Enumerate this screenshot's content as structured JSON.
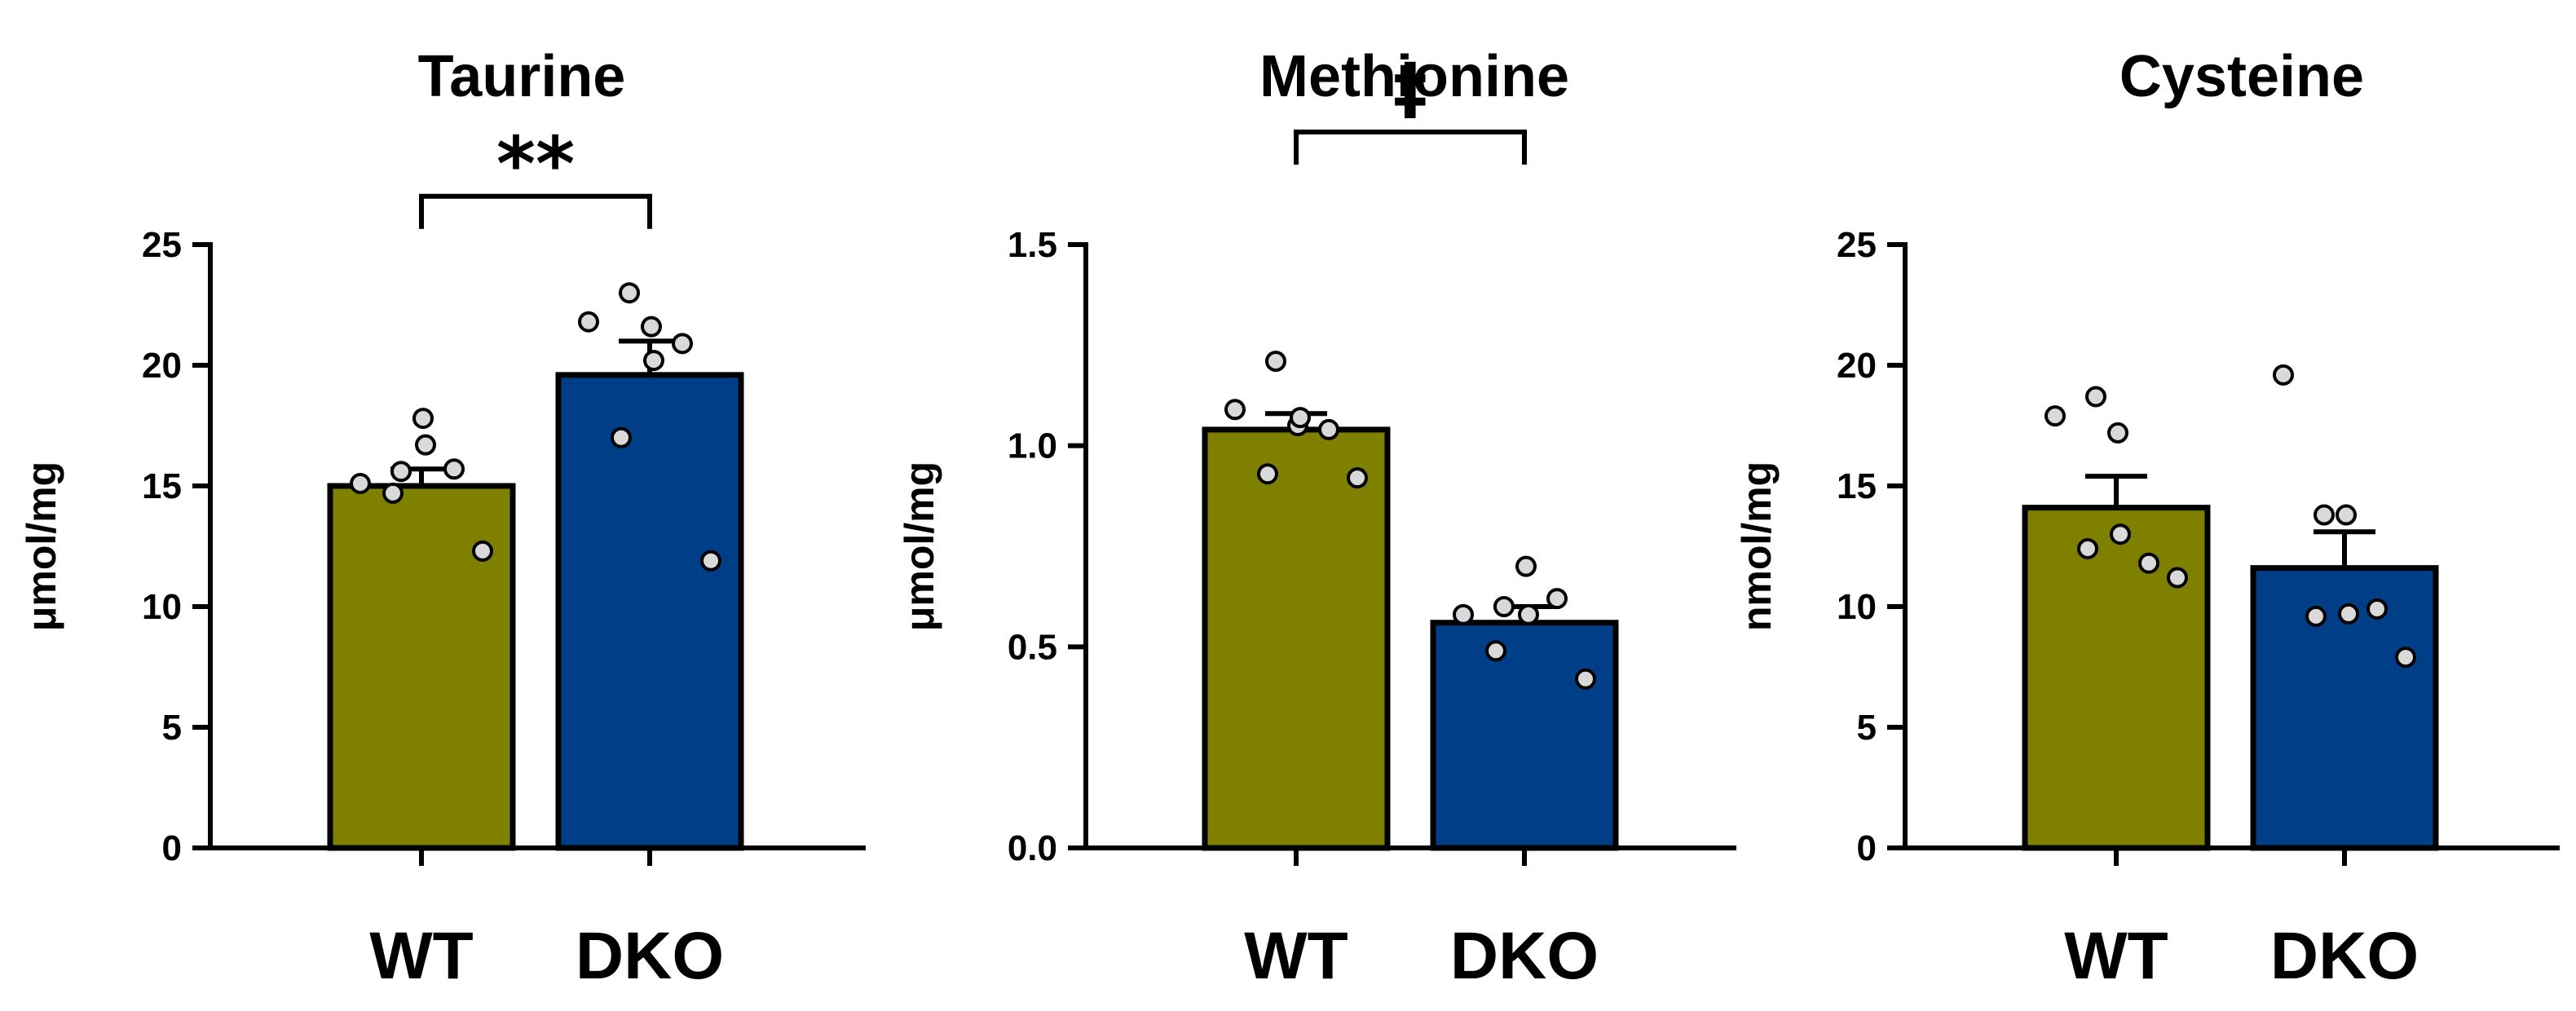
{
  "chart_data": [
    {
      "type": "bar",
      "title": "Taurine",
      "ylabel": "μmol/mg",
      "xlabel": "",
      "ylim": [
        0,
        25
      ],
      "yticks": [
        0,
        5,
        10,
        15,
        20,
        25
      ],
      "ytick_labels": [
        "0",
        "5",
        "10",
        "15",
        "20",
        "25"
      ],
      "categories": [
        "WT",
        "DKO"
      ],
      "values": [
        15.0,
        19.6
      ],
      "errors": [
        0.7,
        1.4
      ],
      "points": [
        [
          15.1,
          15.6,
          17.8,
          16.7,
          15.7,
          14.7,
          12.3
        ],
        [
          21.8,
          23.0,
          21.6,
          20.2,
          20.9,
          17.0,
          11.9
        ]
      ],
      "colors": [
        "#808000",
        "#003f87"
      ],
      "significance": {
        "from": "WT",
        "to": "DKO",
        "label": "**",
        "level": 27
      }
    },
    {
      "type": "bar",
      "title": "Methionine",
      "ylabel": "μmol/mg",
      "xlabel": "",
      "ylim": [
        0,
        1.5
      ],
      "yticks": [
        0,
        0.5,
        1.0,
        1.5
      ],
      "ytick_labels": [
        "0.0",
        "0.5",
        "1.0",
        "1.5"
      ],
      "categories": [
        "WT",
        "DKO"
      ],
      "values": [
        1.04,
        0.56
      ],
      "errors": [
        0.04,
        0.04
      ],
      "points": [
        [
          1.09,
          1.21,
          1.05,
          1.07,
          1.04,
          0.93,
          0.92
        ],
        [
          0.58,
          0.6,
          0.7,
          0.58,
          0.62,
          0.49,
          0.42
        ]
      ],
      "colors": [
        "#808000",
        "#003f87"
      ],
      "significance": {
        "from": "WT",
        "to": "DKO",
        "label": "‡",
        "level": 1.78
      }
    },
    {
      "type": "bar",
      "title": "Cysteine",
      "ylabel": "nmol/mg",
      "xlabel": "",
      "ylim": [
        0,
        25
      ],
      "yticks": [
        0,
        5,
        10,
        15,
        20,
        25
      ],
      "ytick_labels": [
        "0",
        "5",
        "10",
        "15",
        "20",
        "25"
      ],
      "categories": [
        "WT",
        "DKO"
      ],
      "values": [
        14.1,
        11.6
      ],
      "errors": [
        1.3,
        1.5
      ],
      "points": [
        [
          17.9,
          18.7,
          17.2,
          13.0,
          11.8,
          12.4,
          11.2
        ],
        [
          19.6,
          13.8,
          13.8,
          9.7,
          9.9,
          9.6,
          7.9
        ]
      ],
      "colors": [
        "#808000",
        "#003f87"
      ]
    }
  ]
}
